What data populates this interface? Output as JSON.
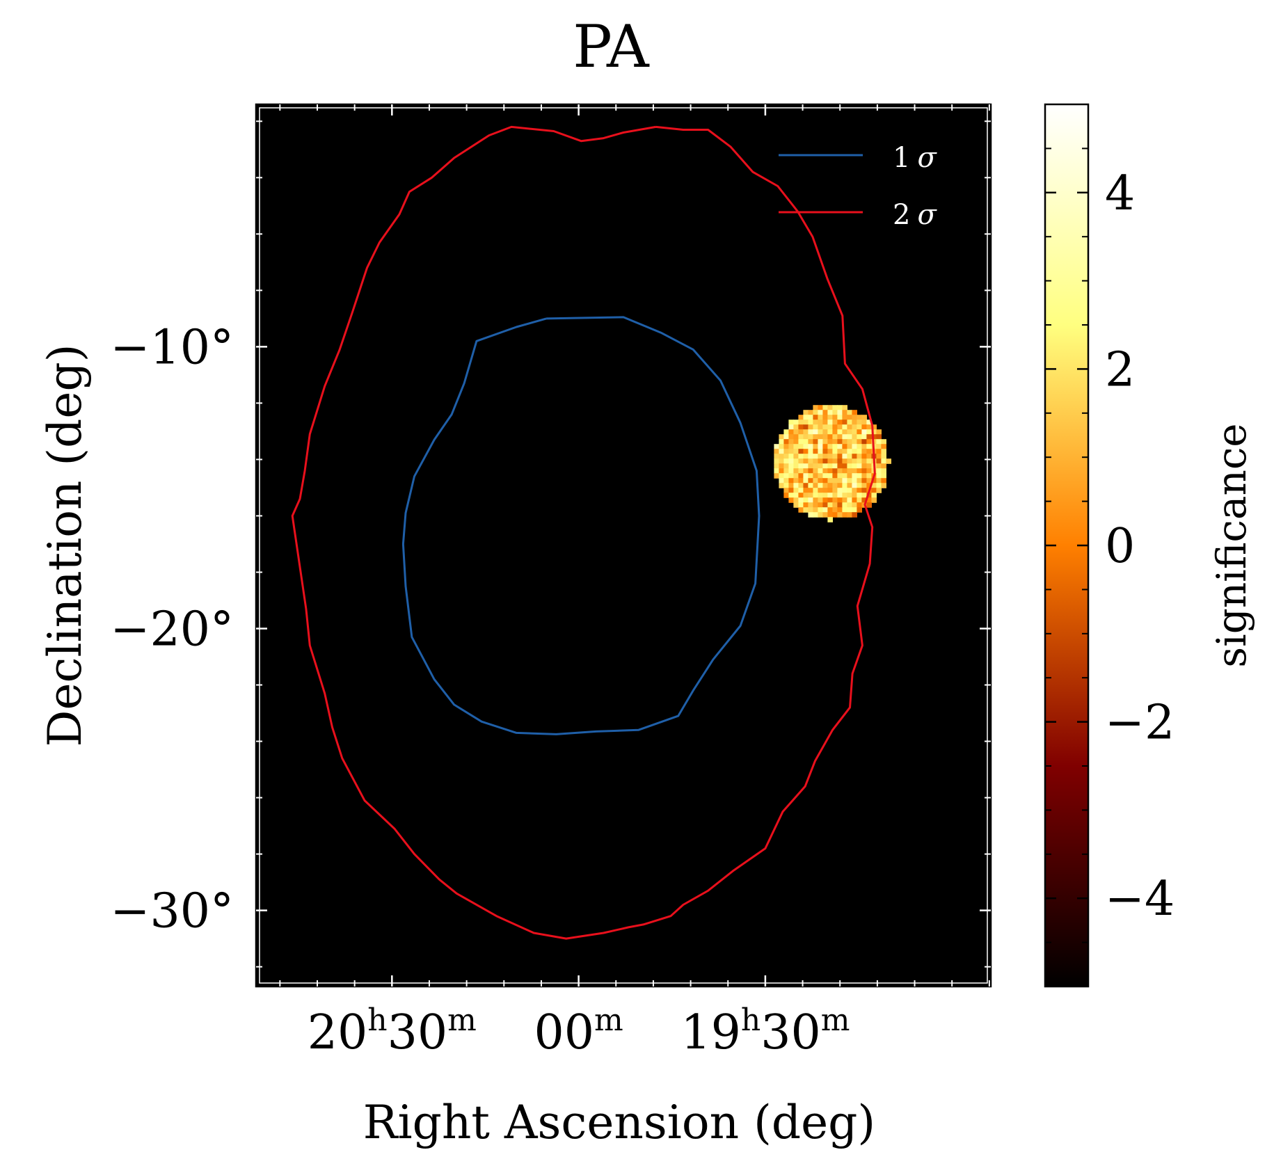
{
  "chart_data": {
    "type": "heatmap",
    "title": "PA",
    "xlabel": "Right Ascension (deg)",
    "ylabel": "Declination (deg)",
    "x_unit": "deg",
    "xlim": [
      312.96,
      283.44
    ],
    "ylim": [
      -32.7,
      -1.4
    ],
    "x_ticks": [
      {
        "value": 307.5,
        "major": "20",
        "major_sup": "h",
        "minor": "30",
        "minor_sup": "m"
      },
      {
        "value": 300.0,
        "major": "",
        "major_sup": "",
        "minor": "00",
        "minor_sup": "m"
      },
      {
        "value": 292.5,
        "major": "19",
        "major_sup": "h",
        "minor": "30",
        "minor_sup": "m"
      }
    ],
    "y_ticks": [
      {
        "value": -10,
        "label": "−10°"
      },
      {
        "value": -20,
        "label": "−20°"
      },
      {
        "value": -30,
        "label": "−30°"
      }
    ],
    "legend": {
      "position": "top-right",
      "entries": [
        {
          "label": "1",
          "symbol": "σ",
          "color": "#1f5fa8"
        },
        {
          "label": "2",
          "symbol": "σ",
          "color": "#e8101c"
        }
      ]
    },
    "contours": [
      {
        "name": "1σ",
        "color": "#1f5fa8",
        "points": [
          [
            301.3,
            -9.0
          ],
          [
            298.2,
            -8.95
          ],
          [
            296.7,
            -9.5
          ],
          [
            295.4,
            -10.1
          ],
          [
            294.3,
            -11.2
          ],
          [
            293.5,
            -12.7
          ],
          [
            292.85,
            -14.4
          ],
          [
            292.75,
            -16.0
          ],
          [
            292.9,
            -18.4
          ],
          [
            293.5,
            -19.9
          ],
          [
            294.6,
            -21.1
          ],
          [
            295.4,
            -22.2
          ],
          [
            296.0,
            -23.1
          ],
          [
            297.6,
            -23.6
          ],
          [
            299.3,
            -23.65
          ],
          [
            300.9,
            -23.75
          ],
          [
            302.5,
            -23.7
          ],
          [
            303.9,
            -23.3
          ],
          [
            305.0,
            -22.7
          ],
          [
            305.8,
            -21.8
          ],
          [
            306.7,
            -20.3
          ],
          [
            306.95,
            -18.5
          ],
          [
            307.05,
            -17.0
          ],
          [
            306.95,
            -15.9
          ],
          [
            306.6,
            -14.6
          ],
          [
            305.8,
            -13.3
          ],
          [
            305.1,
            -12.4
          ],
          [
            304.6,
            -11.3
          ],
          [
            304.1,
            -9.8
          ],
          [
            302.5,
            -9.3
          ],
          [
            301.3,
            -9.0
          ]
        ]
      },
      {
        "name": "2σ",
        "color": "#e8101c",
        "points": [
          [
            296.9,
            -2.2
          ],
          [
            295.8,
            -2.3
          ],
          [
            294.8,
            -2.3
          ],
          [
            293.9,
            -2.9
          ],
          [
            293.0,
            -3.8
          ],
          [
            292.0,
            -4.3
          ],
          [
            291.2,
            -5.2
          ],
          [
            290.6,
            -6.1
          ],
          [
            290.0,
            -7.6
          ],
          [
            289.4,
            -8.9
          ],
          [
            289.3,
            -10.6
          ],
          [
            288.6,
            -11.5
          ],
          [
            288.2,
            -12.8
          ],
          [
            288.1,
            -14.5
          ],
          [
            288.5,
            -15.6
          ],
          [
            288.2,
            -16.4
          ],
          [
            288.3,
            -17.7
          ],
          [
            288.8,
            -19.2
          ],
          [
            288.6,
            -20.6
          ],
          [
            289.0,
            -21.6
          ],
          [
            289.1,
            -22.8
          ],
          [
            289.8,
            -23.6
          ],
          [
            290.5,
            -24.7
          ],
          [
            290.9,
            -25.6
          ],
          [
            291.8,
            -26.5
          ],
          [
            292.5,
            -27.8
          ],
          [
            293.8,
            -28.6
          ],
          [
            294.8,
            -29.3
          ],
          [
            295.8,
            -29.8
          ],
          [
            296.3,
            -30.2
          ],
          [
            297.4,
            -30.5
          ],
          [
            298.0,
            -30.6
          ],
          [
            299.0,
            -30.8
          ],
          [
            300.5,
            -31.0
          ],
          [
            301.8,
            -30.8
          ],
          [
            303.3,
            -30.2
          ],
          [
            304.9,
            -29.4
          ],
          [
            305.6,
            -28.9
          ],
          [
            306.6,
            -28.0
          ],
          [
            307.4,
            -27.1
          ],
          [
            308.6,
            -26.1
          ],
          [
            309.5,
            -24.6
          ],
          [
            309.9,
            -23.5
          ],
          [
            310.2,
            -22.3
          ],
          [
            310.8,
            -20.6
          ],
          [
            310.95,
            -19.3
          ],
          [
            311.5,
            -16.0
          ],
          [
            311.2,
            -15.4
          ],
          [
            311.0,
            -14.4
          ],
          [
            310.8,
            -13.1
          ],
          [
            310.2,
            -11.4
          ],
          [
            309.6,
            -10.1
          ],
          [
            309.1,
            -8.8
          ],
          [
            308.5,
            -7.2
          ],
          [
            308.0,
            -6.3
          ],
          [
            307.2,
            -5.3
          ],
          [
            306.8,
            -4.5
          ],
          [
            305.9,
            -4.0
          ],
          [
            305.0,
            -3.3
          ],
          [
            303.6,
            -2.5
          ],
          [
            302.7,
            -2.2
          ],
          [
            301.0,
            -2.35
          ],
          [
            299.9,
            -2.7
          ],
          [
            299.0,
            -2.6
          ],
          [
            298.2,
            -2.4
          ],
          [
            296.9,
            -2.2
          ]
        ]
      }
    ],
    "significance_map": {
      "region": "circular patch",
      "center_ra": 289.85,
      "center_dec": -14.1,
      "radius_deg": 2.3,
      "value_range": [
        -1.2,
        4.0
      ],
      "mean_value": 0.6
    },
    "colorbar": {
      "label": "significance",
      "colormap": "afmhot",
      "vmin": -5,
      "vmax": 5,
      "ticks": [
        {
          "value": 4,
          "label": "4"
        },
        {
          "value": 2,
          "label": "2"
        },
        {
          "value": 0,
          "label": "0"
        },
        {
          "value": -2,
          "label": "−2"
        },
        {
          "value": -4,
          "label": "−4"
        }
      ]
    }
  }
}
